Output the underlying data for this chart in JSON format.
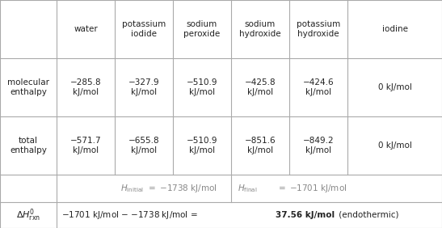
{
  "col_headers": [
    "water",
    "potassium\niodide",
    "sodium\nperoxide",
    "sodium\nhydroxide",
    "potassium\nhydroxide",
    "iodine"
  ],
  "mol_enthalpy": [
    "−285.8\nkJ/mol",
    "−327.9\nkJ/mol",
    "−510.9\nkJ/mol",
    "−425.8\nkJ/mol",
    "−424.6\nkJ/mol",
    "0 kJ/mol"
  ],
  "tot_enthalpy": [
    "−571.7\nkJ/mol",
    "−655.8\nkJ/mol",
    "−510.9\nkJ/mol",
    "−851.6\nkJ/mol",
    "−849.2\nkJ/mol",
    "0 kJ/mol"
  ],
  "bg_color": "#ffffff",
  "grid_color": "#aaaaaa",
  "text_color": "#222222",
  "fontsize": 7.5
}
